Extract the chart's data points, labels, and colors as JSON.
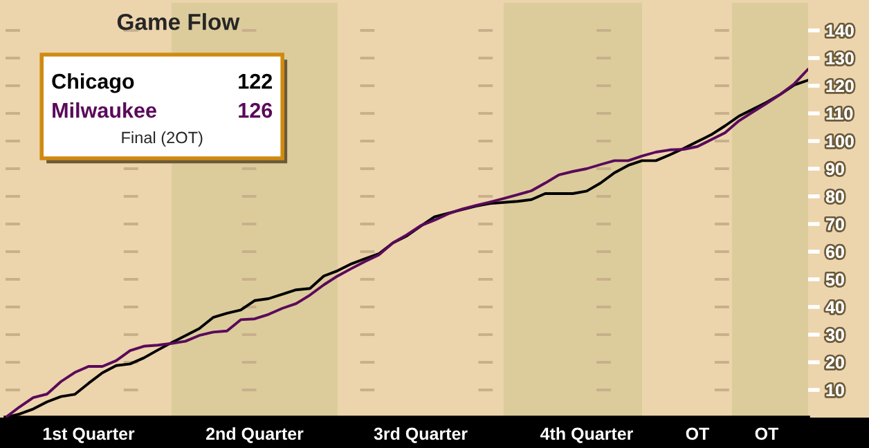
{
  "chart_data": {
    "type": "line",
    "title": "Game Flow",
    "annotations": [
      "122",
      "126",
      "Final (2OT)"
    ],
    "categories": [
      null,
      null,
      null,
      null,
      null,
      null,
      "1st Quarter",
      null,
      null,
      null,
      null,
      null,
      null,
      null,
      null,
      null,
      null,
      null,
      "2nd Quarter",
      null,
      null,
      null,
      null,
      null,
      null,
      null,
      null,
      null,
      null,
      null,
      "3rd Quarter",
      null,
      null,
      null,
      null,
      null,
      null,
      null,
      null,
      null,
      null,
      null,
      "4th Quarter",
      null,
      null,
      null,
      null,
      null,
      null,
      null,
      "OT",
      null,
      null,
      null,
      null,
      "OT",
      null,
      null,
      null
    ],
    "ylim": [
      0,
      150
    ],
    "yticks": [
      10,
      20,
      30,
      40,
      50,
      60,
      70,
      80,
      90,
      100,
      110,
      120,
      130,
      140
    ],
    "grid": "y",
    "legend": "top left",
    "series": [
      {
        "name": "Chicago",
        "color": "#000000",
        "values": [
          0,
          1.3,
          3.1,
          5.7,
          7.6,
          8.4,
          12.4,
          16.2,
          18.8,
          19.4,
          21.6,
          24.4,
          27.1,
          29.6,
          32.2,
          36.2,
          37.7,
          38.9,
          42.3,
          43.0,
          44.6,
          46.2,
          46.7,
          51.2,
          53.1,
          55.6,
          57.5,
          59.3,
          63.2,
          65.7,
          69.2,
          72.6,
          73.9,
          75.2,
          76.5,
          77.4,
          77.8,
          78.2,
          78.8,
          81,
          81,
          81,
          81.9,
          84.8,
          88.5,
          91.2,
          92.9,
          92.9,
          95,
          97.3,
          99.8,
          102.3,
          105.5,
          109.0,
          111.5,
          114,
          116.9,
          120.3,
          122
        ]
      },
      {
        "name": "Milwaukee",
        "color": "#5a0a5a",
        "values": [
          0,
          3.8,
          7.2,
          8.5,
          13.0,
          16.3,
          18.5,
          18.5,
          20.6,
          24.2,
          25.8,
          26.2,
          26.8,
          27.6,
          29.7,
          30.9,
          31.3,
          35.4,
          35.7,
          37.3,
          39.5,
          41.2,
          44.3,
          48.0,
          51.2,
          53.9,
          56.5,
          58.9,
          63.2,
          66.1,
          69.4,
          71.4,
          73.7,
          75.4,
          76.7,
          77.9,
          79.2,
          80.6,
          82.0,
          84.8,
          87.8,
          89,
          90.0,
          91.5,
          92.9,
          92.9,
          94.6,
          96.0,
          96.8,
          97,
          98.0,
          100.5,
          103.0,
          107.3,
          110.5,
          113.6,
          116.9,
          120.7,
          126
        ]
      }
    ]
  }
}
